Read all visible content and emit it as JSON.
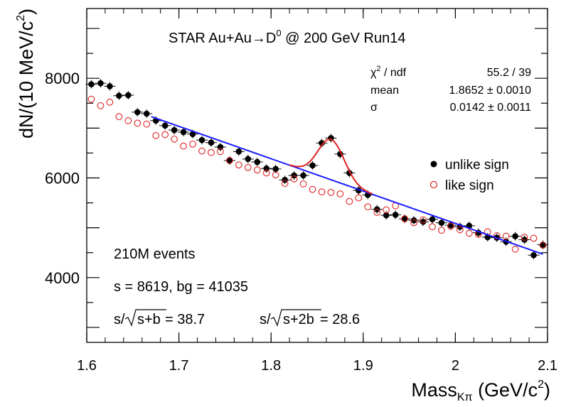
{
  "chart_data": {
    "type": "scatter",
    "title_prefix": "STAR Au+Au",
    "title_arrow": "→",
    "title_particle": "D",
    "title_particle_sup": "0",
    "title_suffix": " @ 200 GeV Run14",
    "xlabel_main": "Mass",
    "xlabel_sub": "Kπ",
    "xlabel_unit": " (GeV/c",
    "xlabel_unit_sup": "2",
    "xlabel_close": ")",
    "ylabel_main": "dN/(10 MeV/c",
    "ylabel_sup": "2",
    "ylabel_close": ")",
    "xlim": [
      1.6,
      2.1
    ],
    "ylim": [
      2700,
      9400
    ],
    "x_ticks": [
      1.6,
      1.7,
      1.8,
      1.9,
      2.0,
      2.1
    ],
    "x_tick_labels": [
      "1.6",
      "1.7",
      "1.8",
      "1.9",
      "2",
      "2.1"
    ],
    "y_ticks": [
      4000,
      6000,
      8000
    ],
    "y_tick_labels": [
      "4000",
      "6000",
      "8000"
    ],
    "fit_stats": {
      "chi2_label": "χ",
      "chi2_sup": "2",
      "chi2_suffix": " / ndf",
      "chi2_value": "55.2 / 39",
      "mean_label": "mean",
      "mean_value": "1.8652 ± 0.0010",
      "sigma_label": "σ",
      "sigma_value": "0.0142 ± 0.0011"
    },
    "legend": {
      "unlike_label": "unlike sign",
      "like_label": "like sign",
      "placement": "right"
    },
    "annotations": {
      "events": "210M events",
      "counts": "s = 8619,  bg = 41035",
      "sig1_prefix": "s/",
      "sig1_radicand": "s+b",
      "sig1_value": " = 38.7",
      "sig2_prefix": "s/",
      "sig2_radicand": "s+2b",
      "sig2_value": " = 28.6"
    },
    "colors": {
      "unlike": "#000000",
      "like": "#e02020",
      "background_fit": "#1a1aff",
      "signal_fit": "#e02020"
    },
    "series": [
      {
        "name": "unlike sign",
        "marker": "filled-circle",
        "x": [
          1.605,
          1.615,
          1.625,
          1.635,
          1.645,
          1.655,
          1.665,
          1.675,
          1.685,
          1.695,
          1.705,
          1.715,
          1.725,
          1.735,
          1.745,
          1.755,
          1.765,
          1.775,
          1.785,
          1.795,
          1.805,
          1.815,
          1.825,
          1.835,
          1.845,
          1.855,
          1.865,
          1.875,
          1.885,
          1.895,
          1.905,
          1.915,
          1.925,
          1.935,
          1.945,
          1.955,
          1.965,
          1.975,
          1.985,
          1.995,
          2.005,
          2.015,
          2.025,
          2.035,
          2.045,
          2.055,
          2.065,
          2.075,
          2.085,
          2.095
        ],
        "y": [
          7880,
          7900,
          7840,
          7650,
          7660,
          7320,
          7290,
          7150,
          7050,
          6960,
          6920,
          6880,
          6760,
          6710,
          6620,
          6350,
          6530,
          6380,
          6320,
          6190,
          6180,
          5960,
          6050,
          6050,
          6250,
          6700,
          6800,
          6480,
          6100,
          5750,
          5660,
          5370,
          5250,
          5260,
          5180,
          5150,
          5120,
          5170,
          5100,
          5050,
          5020,
          5040,
          4900,
          4810,
          4800,
          4720,
          4830,
          4760,
          4450,
          4660
        ]
      },
      {
        "name": "like sign",
        "marker": "open-circle",
        "x": [
          1.605,
          1.615,
          1.625,
          1.635,
          1.645,
          1.655,
          1.665,
          1.675,
          1.685,
          1.695,
          1.705,
          1.715,
          1.725,
          1.735,
          1.745,
          1.755,
          1.765,
          1.775,
          1.785,
          1.795,
          1.805,
          1.815,
          1.825,
          1.835,
          1.845,
          1.855,
          1.865,
          1.875,
          1.885,
          1.895,
          1.905,
          1.915,
          1.925,
          1.935,
          1.945,
          1.955,
          1.965,
          1.975,
          1.985,
          1.995,
          2.005,
          2.015,
          2.025,
          2.035,
          2.045,
          2.055,
          2.065,
          2.075,
          2.085,
          2.095
        ],
        "y": [
          7580,
          7450,
          7520,
          7230,
          7150,
          7100,
          7080,
          6850,
          6870,
          6780,
          6640,
          6680,
          6540,
          6510,
          6530,
          6350,
          6260,
          6210,
          6160,
          6100,
          6060,
          5890,
          5980,
          5880,
          5770,
          5720,
          5710,
          5680,
          5530,
          5600,
          5420,
          5310,
          5360,
          5440,
          5180,
          5100,
          5160,
          5020,
          4950,
          5030,
          4960,
          4890,
          4870,
          4920,
          4840,
          4830,
          4570,
          4810,
          4790,
          4650
        ]
      }
    ],
    "background_fit": {
      "x": [
        1.67,
        2.095
      ],
      "y": [
        7230,
        4470
      ]
    },
    "signal_fit": {
      "amplitude": 810,
      "mean": 1.8652,
      "sigma": 0.0142,
      "x_range": [
        1.82,
        1.91
      ]
    }
  }
}
